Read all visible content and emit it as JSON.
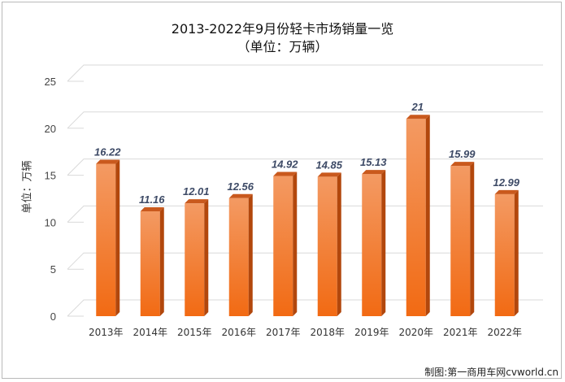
{
  "chart_data": {
    "type": "bar",
    "title": "2013-2022年9月份轻卡市场销量一览",
    "subtitle": "（单位：万辆）",
    "xlabel": "",
    "ylabel": "单位：万辆",
    "categories": [
      "2013年",
      "2014年",
      "2015年",
      "2016年",
      "2017年",
      "2018年",
      "2019年",
      "2020年",
      "2021年",
      "2022年"
    ],
    "values": [
      16.22,
      11.16,
      12.01,
      12.56,
      14.92,
      14.85,
      15.13,
      21,
      15.99,
      12.99
    ],
    "data_labels": [
      "16.22",
      "11.16",
      "12.01",
      "12.56",
      "14.92",
      "14.85",
      "15.13",
      "21",
      "15.99",
      "12.99"
    ],
    "ylim": [
      0,
      25
    ],
    "yticks": [
      0,
      5,
      10,
      15,
      20,
      25
    ],
    "grid": true,
    "legend": "none",
    "colors": {
      "bar_top": "#f39a63",
      "bar_bottom": "#f26a13",
      "bar_side": "#b2470c",
      "bar_cap": "#c9591d",
      "grid": "#d9d9d9",
      "label": "#3d4a66"
    }
  },
  "footer": {
    "credit": "制图:第一商用车网cvworld.cn"
  }
}
